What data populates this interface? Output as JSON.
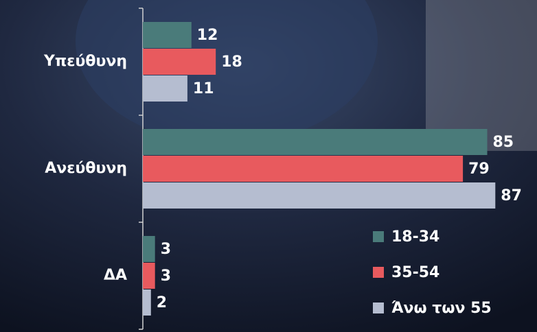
{
  "chart_data": {
    "type": "hbar",
    "categories": [
      "Υπεύθυνη",
      "Ανεύθυνη",
      "ΔΑ"
    ],
    "series": [
      {
        "name": "18-34",
        "color": "#4a7b7a",
        "values": [
          12,
          85,
          3
        ]
      },
      {
        "name": "35-54",
        "color": "#e85a5e",
        "values": [
          18,
          79,
          3
        ]
      },
      {
        "name": "Άνω των 55",
        "color": "#b5bdd0",
        "values": [
          11,
          87,
          2
        ]
      }
    ],
    "xlim": [
      0,
      90
    ]
  }
}
